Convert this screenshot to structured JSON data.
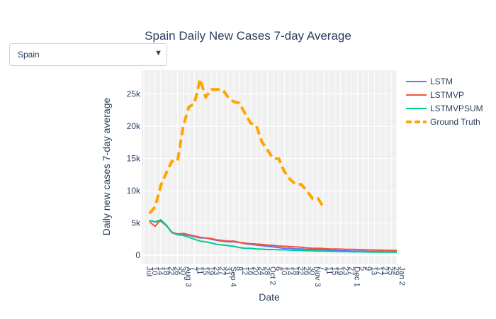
{
  "title": "Spain Daily New Cases 7-day Average",
  "dropdown": {
    "selected": "Spain"
  },
  "icons": {
    "dropdown_arrow": "triangle-down-icon"
  },
  "colors": {
    "LSTM": "#636efa",
    "LSTMVP": "#ef553b",
    "LSTMVPSUM": "#00cc96",
    "Ground Truth": "#ffa500",
    "plot_bg": "#f0f0f0"
  },
  "chart_data": {
    "type": "line",
    "title": "Spain Daily New Cases 7-day Average",
    "xlabel": "Date",
    "ylabel": "Daily new cases 7-day average",
    "x_tick_labels": [
      "Jul",
      "10",
      "14",
      "18",
      "22",
      "26",
      "30",
      "Aug 3",
      "7",
      "11",
      "15",
      "19",
      "23",
      "27",
      "31",
      "Sep 4",
      "8",
      "12",
      "16",
      "20",
      "24",
      "28",
      "Oct 2",
      "6",
      "10",
      "14",
      "18",
      "22",
      "26",
      "30",
      "Nov 3",
      "7",
      "11",
      "15",
      "19",
      "23",
      "27",
      "Dec 1",
      "5",
      "9",
      "13",
      "17",
      "21",
      "25",
      "29",
      "Jan 2"
    ],
    "x": [
      "2020-07-10",
      "2020-07-14",
      "2020-07-18",
      "2020-07-22",
      "2020-07-26",
      "2020-07-30",
      "2020-08-03",
      "2020-08-07",
      "2020-08-11",
      "2020-08-15",
      "2020-08-19",
      "2020-08-23",
      "2020-08-27",
      "2020-08-31",
      "2020-09-04",
      "2020-09-08",
      "2020-09-12",
      "2020-09-16",
      "2020-09-20",
      "2020-09-24",
      "2020-09-28",
      "2020-10-02",
      "2020-10-06",
      "2020-10-10",
      "2020-10-14",
      "2020-10-18",
      "2020-10-22",
      "2020-10-26",
      "2020-10-30",
      "2020-11-03",
      "2020-11-07",
      "2020-11-11",
      "2020-11-15",
      "2020-11-19",
      "2020-11-23",
      "2020-11-27",
      "2020-12-01",
      "2020-12-05",
      "2020-12-09",
      "2020-12-13",
      "2020-12-17",
      "2020-12-21",
      "2020-12-25",
      "2020-12-29",
      "2021-01-02"
    ],
    "y_ticks": [
      0,
      5000,
      10000,
      15000,
      20000,
      25000
    ],
    "y_tick_labels": [
      "0",
      "5k",
      "10k",
      "15k",
      "20k",
      "25k"
    ],
    "ylim": [
      -1300,
      28700
    ],
    "grid": true,
    "legend_position": "right",
    "series": [
      {
        "name": "LSTM",
        "values": [
          5400,
          5200,
          5300,
          4600,
          3500,
          3300,
          3300,
          3100,
          2900,
          2700,
          2700,
          2500,
          2300,
          2200,
          2100,
          2100,
          2000,
          1800,
          1700,
          1600,
          1500,
          1400,
          1300,
          1200,
          1100,
          1100,
          1000,
          1000,
          900,
          900,
          850,
          850,
          800,
          750,
          700,
          700,
          650,
          650,
          650,
          600,
          600,
          600,
          550,
          550,
          550
        ]
      },
      {
        "name": "LSTMVP",
        "values": [
          5200,
          4500,
          5500,
          4600,
          3600,
          3300,
          3400,
          3200,
          3000,
          2800,
          2700,
          2600,
          2400,
          2300,
          2200,
          2200,
          2000,
          1900,
          1800,
          1750,
          1700,
          1600,
          1550,
          1450,
          1400,
          1350,
          1300,
          1250,
          1150,
          1100,
          1100,
          1050,
          1000,
          980,
          960,
          930,
          920,
          900,
          870,
          840,
          820,
          800,
          780,
          760,
          740
        ]
      },
      {
        "name": "LSTMVPSUM",
        "values": [
          5400,
          5200,
          5500,
          4700,
          3500,
          3200,
          3100,
          2800,
          2500,
          2200,
          2100,
          1900,
          1700,
          1600,
          1500,
          1400,
          1200,
          1100,
          1100,
          1000,
          950,
          900,
          900,
          850,
          850,
          800,
          750,
          750,
          700,
          700,
          650,
          650,
          620,
          600,
          580,
          570,
          550,
          540,
          520,
          500,
          500,
          480,
          480,
          470,
          460
        ]
      },
      {
        "name": "Ground Truth",
        "values": [
          6500,
          7500,
          10800,
          12800,
          14600,
          14600,
          20000,
          23000,
          23500,
          27300,
          24500,
          25700,
          25700,
          25700,
          24500,
          23800,
          23600,
          22000,
          20500,
          20100,
          17600,
          16300,
          15000,
          15000,
          13000,
          11800,
          11000,
          11000,
          10000,
          8800,
          8800,
          7400,
          null,
          null,
          null,
          null,
          null,
          null,
          null,
          null,
          null,
          null,
          null,
          null,
          null
        ]
      }
    ]
  }
}
